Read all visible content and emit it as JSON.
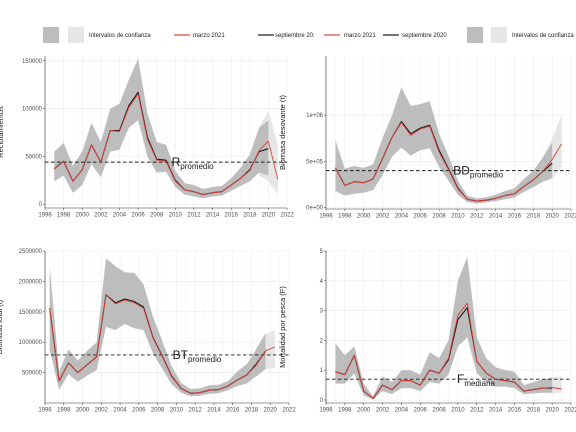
{
  "legends": [
    {
      "items": [
        {
          "type": "band",
          "color": "#bdbdbd",
          "label": ""
        },
        {
          "type": "band",
          "color": "#e6e6e6",
          "label": "Intervalos de confianza"
        },
        {
          "type": "line",
          "color": "#e0413a",
          "label": "marzo 2021"
        },
        {
          "type": "line",
          "color": "#1a1a1a",
          "label": "septiembre 20:"
        }
      ]
    },
    {
      "items": [
        {
          "type": "line",
          "color": "#e0413a",
          "label": "marzo 2021"
        },
        {
          "type": "line",
          "color": "#1a1a1a",
          "label": "septiembre 2020"
        },
        {
          "type": "band",
          "color": "#bdbdbd",
          "label": ""
        },
        {
          "type": "band",
          "color": "#e6e6e6",
          "label": "Intervalos de confianza"
        }
      ]
    }
  ],
  "chart_data": [
    {
      "type": "line",
      "ylabel": "Reclutamientos",
      "xlim": [
        1996,
        2022
      ],
      "ylim": [
        -4000,
        155000
      ],
      "xticks": [
        1996,
        1998,
        2000,
        2002,
        2004,
        2006,
        2008,
        2010,
        2012,
        2014,
        2016,
        2018,
        2020,
        2022
      ],
      "yticks": [
        0,
        50000,
        100000,
        150000
      ],
      "ytick_labels": [
        "0",
        "50000",
        "100000",
        "150000"
      ],
      "hline": {
        "value": 44000,
        "style": "dashed"
      },
      "annotation": {
        "main": "R",
        "sub": "promedio",
        "x": 2009.6,
        "y": 44000
      },
      "x": [
        1997,
        1998,
        1999,
        2000,
        2001,
        2002,
        2003,
        2004,
        2005,
        2006,
        2007,
        2008,
        2009,
        2010,
        2011,
        2012,
        2013,
        2014,
        2015,
        2016,
        2017,
        2018,
        2019,
        2020,
        2021
      ],
      "series": [
        {
          "color": "#1a1a1a",
          "values": [
            37000,
            45000,
            24000,
            36000,
            62000,
            44000,
            77000,
            77000,
            103000,
            117000,
            70000,
            47000,
            46000,
            25000,
            15000,
            13000,
            10000,
            12000,
            13000,
            20000,
            27000,
            36000,
            55000,
            58000,
            null
          ]
        },
        {
          "color": "#e0413a",
          "values": [
            37000,
            45000,
            24000,
            36000,
            62000,
            44000,
            77000,
            76000,
            101000,
            115000,
            68000,
            46000,
            45000,
            24000,
            15000,
            13000,
            10000,
            12000,
            13000,
            20000,
            27000,
            35000,
            56000,
            66000,
            26000
          ]
        }
      ],
      "band_inner": {
        "x": [
          1997,
          1998,
          1999,
          2000,
          2001,
          2002,
          2003,
          2004,
          2005,
          2006,
          2007,
          2008,
          2009,
          2010,
          2011,
          2012,
          2013,
          2014,
          2015,
          2016,
          2017,
          2018,
          2019,
          2020
        ],
        "lower": [
          24000,
          30000,
          12000,
          20000,
          42000,
          28000,
          55000,
          57000,
          80000,
          88000,
          50000,
          33000,
          34000,
          18000,
          10000,
          8000,
          6000,
          8000,
          9000,
          14000,
          19000,
          24000,
          33000,
          30000
        ],
        "upper": [
          55000,
          64000,
          40000,
          55000,
          85000,
          65000,
          100000,
          105000,
          130000,
          152000,
          95000,
          65000,
          62000,
          35000,
          22000,
          20000,
          16000,
          18000,
          19000,
          27000,
          38000,
          52000,
          80000,
          88000
        ]
      },
      "band_outer": {
        "x": [
          2019,
          2020,
          2021
        ],
        "lower": [
          30000,
          24000,
          10000
        ],
        "upper": [
          80000,
          98000,
          62000
        ]
      }
    },
    {
      "type": "line",
      "ylabel": "Biomasa desovante (t)",
      "xlim": [
        1996,
        2022
      ],
      "ylim": [
        -15000,
        1640000
      ],
      "xticks": [
        1996,
        1998,
        2000,
        2002,
        2004,
        2006,
        2008,
        2010,
        2012,
        2014,
        2016,
        2018,
        2020,
        2022
      ],
      "yticks": [
        0,
        500000,
        1000000
      ],
      "ytick_labels": [
        "0e+00",
        "5e+05",
        "1e+06"
      ],
      "hline": {
        "value": 400000,
        "style": "dashed"
      },
      "annotation": {
        "main": "BD",
        "sub": "promedio",
        "x": 2009.5,
        "y": 400000
      },
      "x": [
        1997,
        1998,
        1999,
        2000,
        2001,
        2002,
        2003,
        2004,
        2005,
        2006,
        2007,
        2008,
        2009,
        2010,
        2011,
        2012,
        2013,
        2014,
        2015,
        2016,
        2017,
        2018,
        2019,
        2020,
        2021
      ],
      "series": [
        {
          "color": "#1a1a1a",
          "values": [
            430000,
            240000,
            280000,
            270000,
            310000,
            530000,
            760000,
            930000,
            800000,
            860000,
            890000,
            620000,
            420000,
            210000,
            90000,
            70000,
            80000,
            100000,
            130000,
            150000,
            230000,
            300000,
            390000,
            480000,
            null
          ]
        },
        {
          "color": "#e0413a",
          "values": [
            430000,
            240000,
            280000,
            270000,
            310000,
            530000,
            760000,
            920000,
            780000,
            850000,
            880000,
            600000,
            410000,
            200000,
            90000,
            70000,
            80000,
            100000,
            130000,
            150000,
            230000,
            300000,
            390000,
            520000,
            690000
          ]
        }
      ],
      "band_inner": {
        "x": [
          1997,
          1998,
          1999,
          2000,
          2001,
          2002,
          2003,
          2004,
          2005,
          2006,
          2007,
          2008,
          2009,
          2010,
          2011,
          2012,
          2013,
          2014,
          2015,
          2016,
          2017,
          2018,
          2019,
          2020
        ],
        "lower": [
          180000,
          130000,
          150000,
          160000,
          190000,
          350000,
          550000,
          650000,
          560000,
          620000,
          640000,
          440000,
          290000,
          140000,
          60000,
          45000,
          55000,
          70000,
          90000,
          110000,
          170000,
          220000,
          280000,
          320000
        ],
        "upper": [
          730000,
          420000,
          450000,
          430000,
          470000,
          750000,
          1000000,
          1300000,
          1100000,
          1120000,
          1150000,
          800000,
          560000,
          290000,
          130000,
          100000,
          110000,
          140000,
          180000,
          210000,
          310000,
          400000,
          540000,
          700000
        ]
      },
      "band_outer": {
        "x": [
          2019,
          2020,
          2021
        ],
        "lower": [
          280000,
          310000,
          440000
        ],
        "upper": [
          540000,
          750000,
          1000000
        ]
      }
    },
    {
      "type": "line",
      "ylabel": "Biomasa total (t)",
      "xlim": [
        1996,
        2022
      ],
      "ylim": [
        0,
        2500000
      ],
      "xticks": [
        1996,
        1998,
        2000,
        2002,
        2004,
        2006,
        2008,
        2010,
        2012,
        2014,
        2016,
        2018,
        2020,
        2022
      ],
      "yticks": [
        500000,
        1000000,
        1500000,
        2000000,
        2500000
      ],
      "ytick_labels": [
        "500000",
        "1000000",
        "1500000",
        "2000000",
        "2500000"
      ],
      "hline": {
        "value": 790000,
        "style": "dashed"
      },
      "annotation": {
        "main": "BT",
        "sub": "promedio",
        "x": 2009.6,
        "y": 790000
      },
      "x": [
        1996.5,
        1997.5,
        1998.5,
        1999.5,
        2000.5,
        2001.5,
        2002.5,
        2003.5,
        2004.5,
        2005.5,
        2006.5,
        2007.5,
        2008.5,
        2009.5,
        2010.5,
        2011.5,
        2012.5,
        2013.5,
        2014.5,
        2015.5,
        2016.5,
        2017.5,
        2018.5,
        2019.5,
        2020.5,
        2021.5
      ],
      "series": [
        {
          "color": "#1a1a1a",
          "values": [
            1560000,
            360000,
            660000,
            500000,
            630000,
            760000,
            1780000,
            1650000,
            1710000,
            1670000,
            1580000,
            1080000,
            770000,
            440000,
            240000,
            160000,
            170000,
            210000,
            220000,
            280000,
            380000,
            460000,
            640000,
            850000,
            null,
            null
          ]
        },
        {
          "color": "#e0413a",
          "values": [
            1560000,
            360000,
            660000,
            500000,
            630000,
            760000,
            1780000,
            1630000,
            1690000,
            1650000,
            1560000,
            1070000,
            760000,
            430000,
            240000,
            160000,
            170000,
            210000,
            220000,
            280000,
            380000,
            460000,
            620000,
            860000,
            920000,
            null
          ]
        }
      ],
      "band_inner": {
        "x": [
          1996.5,
          1997.5,
          1998.5,
          1999.5,
          2000.5,
          2001.5,
          2002.5,
          2003.5,
          2004.5,
          2005.5,
          2006.5,
          2007.5,
          2008.5,
          2009.5,
          2010.5,
          2011.5,
          2012.5,
          2013.5,
          2014.5,
          2015.5,
          2016.5,
          2017.5,
          2018.5,
          2019.5
        ],
        "lower": [
          880000,
          220000,
          470000,
          350000,
          450000,
          540000,
          1250000,
          1200000,
          1300000,
          1230000,
          1200000,
          820000,
          560000,
          310000,
          170000,
          110000,
          120000,
          150000,
          160000,
          210000,
          280000,
          320000,
          440000,
          560000
        ],
        "upper": [
          2250000,
          520000,
          880000,
          700000,
          860000,
          1000000,
          2380000,
          2250000,
          2150000,
          2140000,
          1950000,
          1420000,
          1020000,
          600000,
          330000,
          230000,
          240000,
          290000,
          300000,
          360000,
          520000,
          640000,
          880000,
          1150000
        ]
      },
      "band_outer": {
        "x": [
          2018.5,
          2019.5,
          2020.5
        ],
        "lower": [
          430000,
          560000,
          580000
        ],
        "upper": [
          900000,
          1130000,
          1200000
        ]
      }
    },
    {
      "type": "line",
      "ylabel": "Mortalidad por pesca (F)",
      "xlim": [
        1996,
        2022
      ],
      "ylim": [
        -0.1,
        5
      ],
      "xticks": [
        1996,
        1998,
        2000,
        2002,
        2004,
        2006,
        2008,
        2010,
        2012,
        2014,
        2016,
        2018,
        2020,
        2022
      ],
      "yticks": [
        0,
        1,
        2,
        3,
        4,
        5
      ],
      "ytick_labels": [
        "0",
        "1",
        "2",
        "3",
        "4",
        "5"
      ],
      "hline": {
        "value": 0.7,
        "style": "dashed"
      },
      "annotation": {
        "main": "F",
        "sub": "mediana",
        "x": 2009.9,
        "y": 0.7
      },
      "x": [
        1997,
        1998,
        1999,
        2000,
        2001,
        2002,
        2003,
        2004,
        2005,
        2006,
        2007,
        2008,
        2009,
        2010,
        2011,
        2012,
        2013,
        2014,
        2015,
        2016,
        2017,
        2018,
        2019,
        2020,
        2021
      ],
      "series": [
        {
          "color": "#1a1a1a",
          "values": [
            0.95,
            0.85,
            1.5,
            0.3,
            0.05,
            0.5,
            0.35,
            0.65,
            0.65,
            0.5,
            1.0,
            0.9,
            1.35,
            2.7,
            3.1,
            1.3,
            0.9,
            0.7,
            0.65,
            0.6,
            0.3,
            0.35,
            0.4,
            0.4,
            null
          ]
        },
        {
          "color": "#e0413a",
          "values": [
            0.95,
            0.85,
            1.5,
            0.3,
            0.05,
            0.5,
            0.35,
            0.65,
            0.65,
            0.5,
            1.0,
            0.9,
            1.4,
            2.85,
            3.25,
            1.3,
            0.9,
            0.7,
            0.65,
            0.6,
            0.3,
            0.35,
            0.4,
            0.42,
            0.37
          ]
        }
      ],
      "band_inner": {
        "x": [
          1997,
          1998,
          1999,
          2000,
          2001,
          2002,
          2003,
          2004,
          2005,
          2006,
          2007,
          2008,
          2009,
          2010,
          2011,
          2012,
          2013,
          2014,
          2015,
          2016,
          2017,
          2018,
          2019,
          2020
        ],
        "lower": [
          0.55,
          0.55,
          0.9,
          0.15,
          0.02,
          0.3,
          0.2,
          0.4,
          0.4,
          0.3,
          0.6,
          0.55,
          0.85,
          1.8,
          2.1,
          0.9,
          0.6,
          0.45,
          0.45,
          0.4,
          0.2,
          0.22,
          0.25,
          0.25
        ],
        "upper": [
          1.9,
          1.5,
          1.8,
          0.55,
          0.12,
          0.8,
          0.6,
          1.0,
          1.0,
          0.85,
          1.6,
          1.4,
          2.0,
          4.0,
          4.8,
          2.1,
          1.4,
          1.1,
          1.0,
          0.95,
          0.5,
          0.6,
          0.7,
          0.75
        ]
      },
      "band_outer": {
        "x": [
          2019,
          2020,
          2021
        ],
        "lower": [
          0.22,
          0.22,
          0.25
        ],
        "upper": [
          0.7,
          0.75,
          0.8
        ]
      }
    }
  ]
}
